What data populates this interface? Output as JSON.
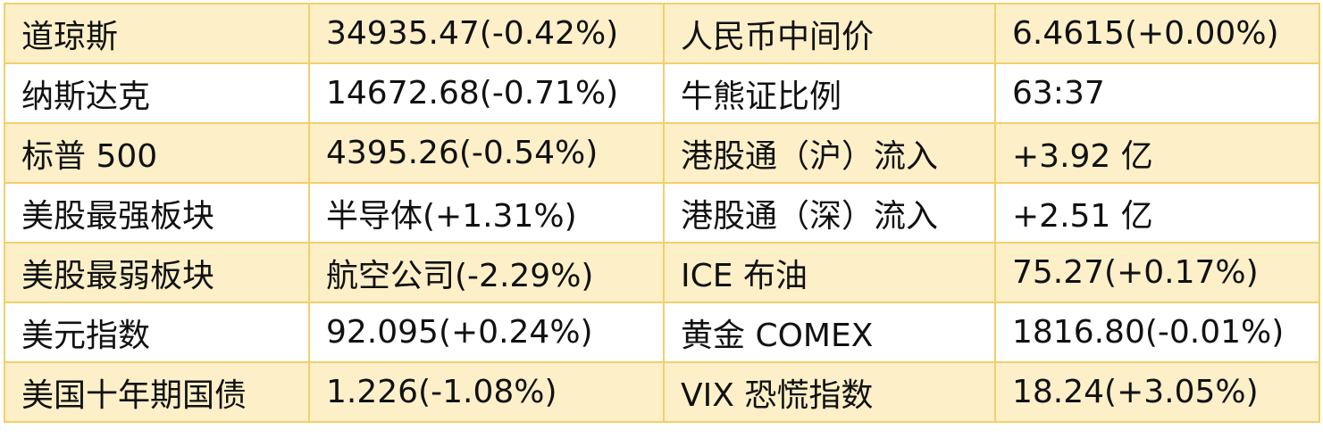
{
  "table": {
    "rows": [
      [
        "道琼斯",
        "34935.47(-0.42%)",
        "人民币中间价",
        "6.4615(+0.00%)"
      ],
      [
        "纳斯达克",
        "14672.68(-0.71%)",
        "牛熊证比例",
        "63:37"
      ],
      [
        "标普 500",
        "4395.26(-0.54%)",
        "港股通（沪）流入",
        "+3.92 亿"
      ],
      [
        "美股最强板块",
        "半导体(+1.31%)",
        "港股通（深）流入",
        "+2.51 亿"
      ],
      [
        "美股最弱板块",
        "航空公司(-2.29%)",
        "ICE 布油",
        "75.27(+0.17%)"
      ],
      [
        "美元指数",
        "92.095(+0.24%)",
        "黄金 COMEX",
        "1816.80(-0.01%)"
      ],
      [
        "美国十年期国债",
        "1.226(-1.08%)",
        "VIX 恐慌指数",
        "18.24(+3.05%)"
      ]
    ]
  }
}
